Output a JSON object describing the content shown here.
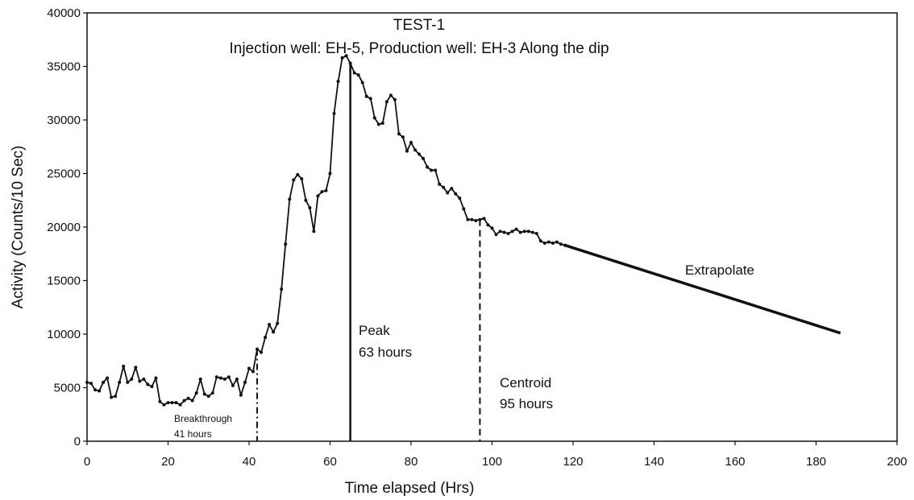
{
  "chart_data": {
    "type": "line",
    "title": "TEST-1",
    "subtitle": "Injection well: EH-5, Production well: EH-3 Along the dip",
    "xlabel": "Time elapsed (Hrs)",
    "ylabel": "Activity (Counts/10 Sec)",
    "xlim": [
      0,
      200
    ],
    "ylim": [
      0,
      40000
    ],
    "xticks": [
      0,
      20,
      40,
      60,
      80,
      100,
      120,
      140,
      160,
      180,
      200
    ],
    "yticks": [
      0,
      5000,
      10000,
      15000,
      20000,
      25000,
      30000,
      35000,
      40000
    ],
    "grid": false,
    "series": [
      {
        "name": "",
        "x": [
          0,
          1,
          2,
          3,
          4,
          5,
          6,
          7,
          8,
          9,
          10,
          11,
          12,
          13,
          14,
          15,
          16,
          17,
          18,
          19,
          20,
          21,
          22,
          23,
          24,
          25,
          26,
          27,
          28,
          29,
          30,
          31,
          32,
          33,
          34,
          35,
          36,
          37,
          38,
          39,
          40,
          41,
          42,
          43,
          44,
          45,
          46,
          47,
          48,
          49,
          50,
          51,
          52,
          53,
          54,
          55,
          56,
          57,
          58,
          59,
          60,
          61,
          62,
          63,
          64,
          65,
          66,
          67,
          68,
          69,
          70,
          71,
          72,
          73,
          74,
          75,
          76,
          77,
          78,
          79,
          80,
          81,
          82,
          83,
          84,
          85,
          86,
          87,
          88,
          89,
          90,
          91,
          92,
          93,
          94,
          95,
          96,
          97,
          98,
          99,
          100,
          101,
          102,
          103,
          104,
          105,
          106,
          107,
          108,
          109,
          110,
          111,
          112,
          113,
          114,
          115,
          116,
          117,
          118
        ],
        "y": [
          5500,
          5400,
          4800,
          4700,
          5500,
          5900,
          4100,
          4200,
          5500,
          7000,
          5500,
          5800,
          6900,
          5600,
          5800,
          5300,
          5100,
          5900,
          3700,
          3400,
          3600,
          3600,
          3600,
          3400,
          3800,
          4000,
          3800,
          4500,
          5800,
          4400,
          4200,
          4500,
          6000,
          5900,
          5800,
          6000,
          5200,
          5800,
          4300,
          5500,
          6800,
          6500,
          8600,
          8300,
          9700,
          10900,
          10200,
          11000,
          14200,
          18400,
          22600,
          24400,
          24900,
          24500,
          22500,
          21800,
          19600,
          22900,
          23300,
          23400,
          25000,
          30600,
          33600,
          35800,
          36000,
          35300,
          34400,
          34200,
          33500,
          32200,
          32000,
          30200,
          29600,
          29700,
          31700,
          32300,
          31900,
          28700,
          28400,
          27100,
          27900,
          27200,
          26800,
          26400,
          25600,
          25300,
          25300,
          24000,
          23700,
          23200,
          23600,
          23100,
          22700,
          21700,
          20700,
          20700,
          20600,
          20700,
          20800,
          20200,
          19900,
          19300,
          19600,
          19500,
          19400,
          19600,
          19800,
          19500,
          19600,
          19600,
          19500,
          19400,
          18700,
          18500,
          18600,
          18500,
          18600,
          18400,
          18300
        ]
      },
      {
        "name": "Extrapolate",
        "x": [
          118,
          186
        ],
        "y": [
          18300,
          10100
        ]
      }
    ],
    "annotations": {
      "breakthrough": {
        "x": 42,
        "line1": "Breakthrough",
        "line2": "41 hours"
      },
      "peak": {
        "x": 65,
        "line1": "Peak",
        "line2": "63 hours"
      },
      "centroid": {
        "x": 97,
        "line1": "Centroid",
        "line2": "95 hours"
      },
      "extrapolate": "Extrapolate"
    }
  }
}
